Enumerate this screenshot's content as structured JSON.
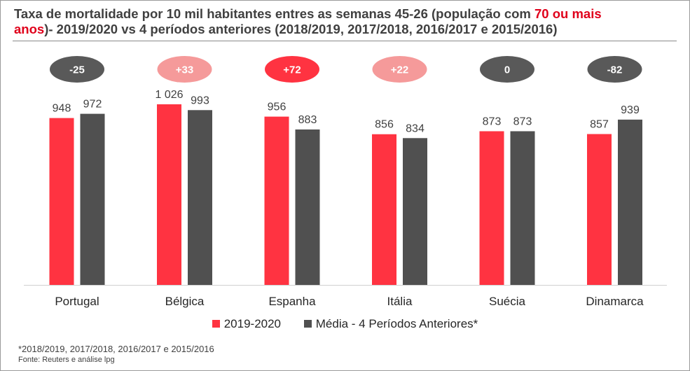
{
  "title": {
    "part1": "Taxa de mortalidade por 10 mil habitantes entres as semanas 45-26 (população com ",
    "highlight1": "70 ou mais",
    "newline_highlight": "anos",
    "part2": ")- 2019/2020 vs 4 períodos anteriores (2018/2019, 2017/2018, 2016/2017 e 2015/2016)"
  },
  "chart_data": {
    "type": "bar",
    "categories": [
      "Portugal",
      "Bélgica",
      "Espanha",
      "Itália",
      "Suécia",
      "Dinamarca"
    ],
    "series": [
      {
        "name": "2019-2020",
        "values": [
          948,
          1026,
          956,
          856,
          873,
          857
        ],
        "labels": [
          "948",
          "1 026",
          "956",
          "856",
          "873",
          "857"
        ],
        "color": "#ff3341"
      },
      {
        "name": "Média - 4 Períodos Anteriores*",
        "values": [
          972,
          993,
          883,
          834,
          873,
          939
        ],
        "labels": [
          "972",
          "993",
          "883",
          "834",
          "873",
          "939"
        ],
        "color": "#505050"
      }
    ],
    "differences": [
      {
        "label": "-25",
        "color": "#595959"
      },
      {
        "label": "+33",
        "color": "#f59a9a"
      },
      {
        "label": "+72",
        "color": "#ff3341"
      },
      {
        "label": "+22",
        "color": "#f59a9a"
      },
      {
        "label": "0",
        "color": "#595959"
      },
      {
        "label": "-82",
        "color": "#595959"
      }
    ],
    "ylim": [
      0,
      1026
    ],
    "grid": false,
    "legend_position": "bottom"
  },
  "footnotes": {
    "note": "*2018/2019, 2017/2018, 2016/2017 e 2015/2016",
    "source": "Fonte: Reuters e análise lpg"
  }
}
